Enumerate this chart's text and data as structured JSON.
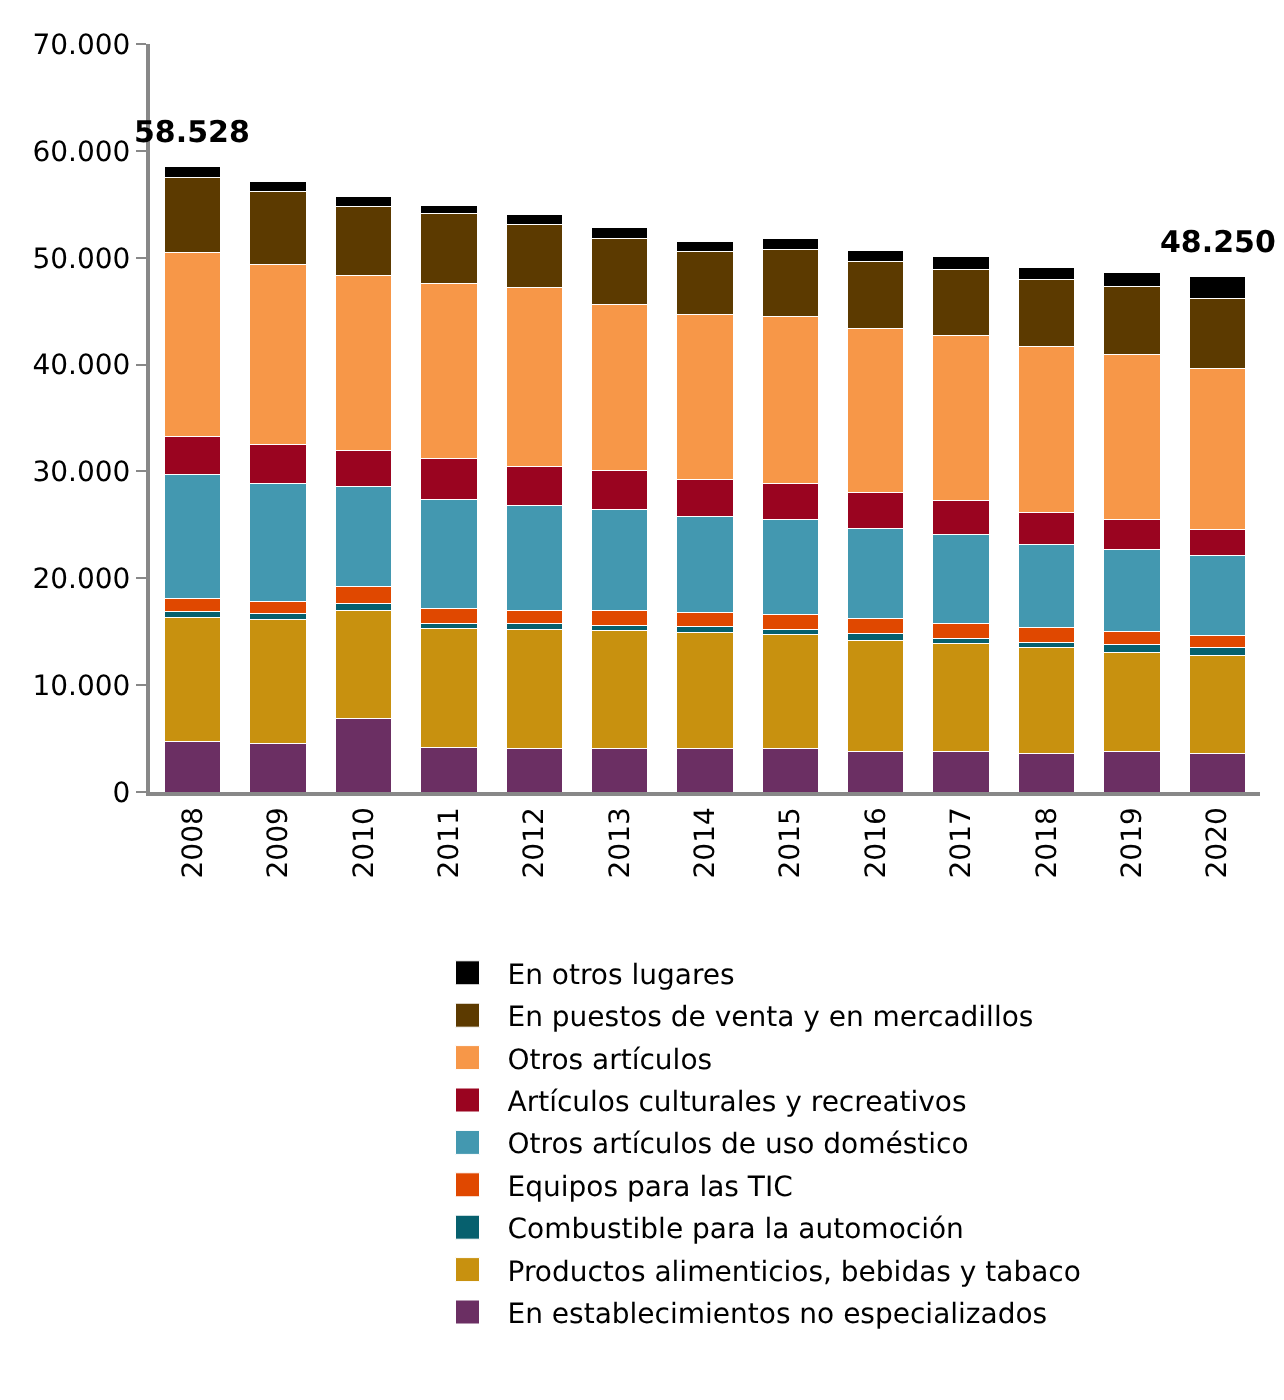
{
  "chart_data": {
    "type": "bar",
    "stacked": true,
    "categories": [
      "2008",
      "2009",
      "2010",
      "2011",
      "2012",
      "2013",
      "2014",
      "2015",
      "2016",
      "2017",
      "2018",
      "2019",
      "2020"
    ],
    "series": [
      {
        "name": "En establecimientos no especializados",
        "color": "#6b2f63",
        "values": [
          4700,
          4500,
          6900,
          4200,
          4100,
          4100,
          4100,
          4100,
          3800,
          3800,
          3600,
          3800,
          3600
        ]
      },
      {
        "name": "Productos alimenticios, bebidas y tabaco",
        "color": "#c8910f",
        "values": [
          11600,
          11600,
          10100,
          11100,
          11100,
          11000,
          10800,
          10600,
          10400,
          10100,
          9900,
          9300,
          9200
        ]
      },
      {
        "name": "Combustible para la automoción",
        "color": "#06606e",
        "values": [
          600,
          600,
          600,
          500,
          600,
          500,
          600,
          500,
          600,
          500,
          500,
          700,
          700
        ]
      },
      {
        "name": "Equipos para las TIC",
        "color": "#e04800",
        "values": [
          1200,
          1100,
          1600,
          1400,
          1200,
          1400,
          1300,
          1400,
          1400,
          1400,
          1400,
          1200,
          1100
        ]
      },
      {
        "name": "Otros artículos de uso doméstico",
        "color": "#4398b0",
        "values": [
          11600,
          11100,
          9400,
          10200,
          9800,
          9400,
          9000,
          8900,
          8500,
          8300,
          7800,
          7700,
          7500
        ]
      },
      {
        "name": "Artículos culturales y recreativos",
        "color": "#9a0420",
        "values": [
          3600,
          3600,
          3400,
          3800,
          3700,
          3700,
          3400,
          3400,
          3300,
          3200,
          3000,
          2800,
          2500
        ]
      },
      {
        "name": "Otros artículos",
        "color": "#f79748",
        "values": [
          17200,
          16900,
          16300,
          16400,
          16700,
          15500,
          15500,
          15600,
          15400,
          15400,
          15500,
          15400,
          15000
        ]
      },
      {
        "name": "En puestos de venta y en mercadillos",
        "color": "#5c3a00",
        "values": [
          7000,
          6800,
          6500,
          6500,
          5900,
          6200,
          5900,
          6300,
          6200,
          6200,
          6300,
          6400,
          6600
        ]
      },
      {
        "name": "En otros lugares",
        "color": "#000000",
        "values": [
          1028,
          900,
          900,
          800,
          900,
          1000,
          900,
          1000,
          1100,
          1200,
          1100,
          1300,
          2050
        ]
      }
    ],
    "totals": [
      "58.528",
      null,
      null,
      null,
      null,
      null,
      null,
      null,
      null,
      null,
      null,
      null,
      "48.250"
    ],
    "ylim": [
      0,
      70000
    ],
    "yticks": [
      {
        "value": 0,
        "label": "0"
      },
      {
        "value": 10000,
        "label": "10.000"
      },
      {
        "value": 20000,
        "label": "20.000"
      },
      {
        "value": 30000,
        "label": "30.000"
      },
      {
        "value": 40000,
        "label": "40.000"
      },
      {
        "value": 50000,
        "label": "50.000"
      },
      {
        "value": 60000,
        "label": "60.000"
      },
      {
        "value": 70000,
        "label": "70.000"
      }
    ],
    "legend": "bottom"
  }
}
